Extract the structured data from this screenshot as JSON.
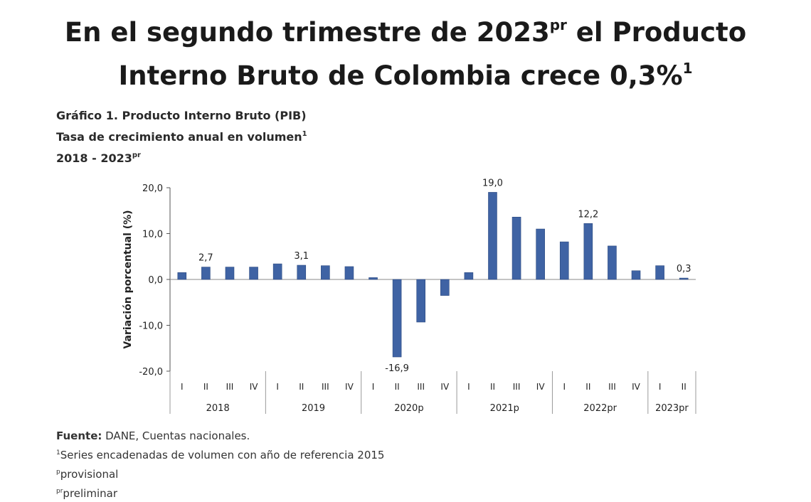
{
  "headline": {
    "line1_pre": "En el segundo trimestre de 2023",
    "line1_sup": "pr",
    "line1_post": " el Producto",
    "line2_pre": "Interno Bruto de Colombia crece 0,3%",
    "line2_sup": "1"
  },
  "chart_titles": {
    "line1": "Gráfico 1. Producto Interno Bruto (PIB)",
    "line2_pre": "Tasa de crecimiento anual en volumen",
    "line2_sup": "1",
    "line3_pre": "2018 - 2023",
    "line3_sup": "pr"
  },
  "chart_data": {
    "type": "bar",
    "ylabel": "Variación porcentual (%)",
    "ylim": [
      -20,
      20
    ],
    "yticks": [
      "20,0",
      "10,0",
      "0,0",
      "-10,0",
      "-20,0"
    ],
    "ytick_values": [
      20,
      10,
      0,
      -10,
      -20
    ],
    "groups": [
      {
        "label": "2018",
        "quarters": [
          "I",
          "II",
          "III",
          "IV"
        ]
      },
      {
        "label": "2019",
        "quarters": [
          "I",
          "II",
          "III",
          "IV"
        ]
      },
      {
        "label": "2020p",
        "quarters": [
          "I",
          "II",
          "III",
          "IV"
        ]
      },
      {
        "label": "2021p",
        "quarters": [
          "I",
          "II",
          "III",
          "IV"
        ]
      },
      {
        "label": "2022pr",
        "quarters": [
          "I",
          "II",
          "III",
          "IV"
        ]
      },
      {
        "label": "2023pr",
        "quarters": [
          "I",
          "II"
        ]
      }
    ],
    "values": [
      1.5,
      2.7,
      2.7,
      2.7,
      3.4,
      3.1,
      3.0,
      2.8,
      0.4,
      -16.9,
      -9.3,
      -3.5,
      1.5,
      19.0,
      13.6,
      11.0,
      8.2,
      12.2,
      7.3,
      1.9,
      3.0,
      0.3
    ],
    "data_labels": [
      {
        "index": 1,
        "text": "2,7"
      },
      {
        "index": 5,
        "text": "3,1"
      },
      {
        "index": 9,
        "text": "-16,9"
      },
      {
        "index": 13,
        "text": "19,0"
      },
      {
        "index": 17,
        "text": "12,2"
      },
      {
        "index": 21,
        "text": "0,3"
      }
    ],
    "bar_color": "#3f63a4"
  },
  "notes": {
    "source_label": "Fuente:",
    "source_text": " DANE, Cuentas nacionales.",
    "note1_sup": "1",
    "note1_text": "Series encadenadas de volumen con año de referencia 2015",
    "note2_sup": "p",
    "note2_text": "provisional",
    "note3_sup": "pr",
    "note3_text": "preliminar"
  }
}
